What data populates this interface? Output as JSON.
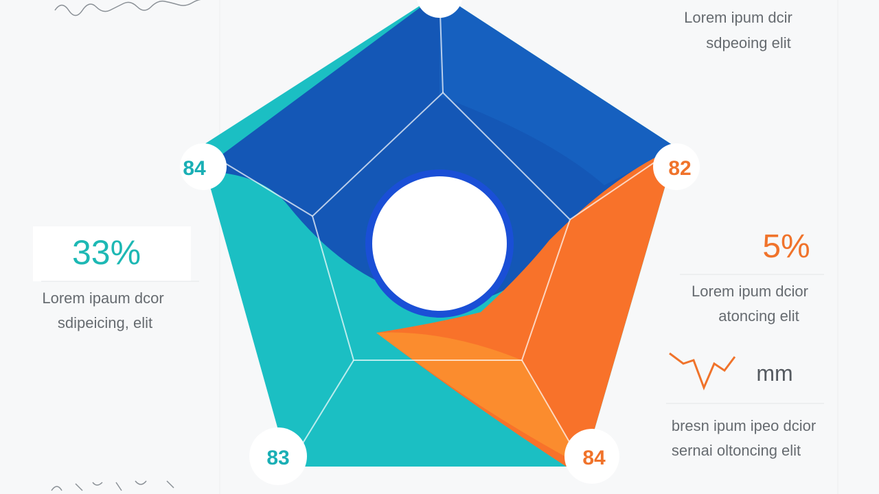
{
  "nodes": [
    "84",
    "82",
    "83",
    "84"
  ],
  "left_panel": {
    "stat": "33%",
    "lines": [
      "Lorem ipaum dcor",
      "sdipeicing, elit"
    ]
  },
  "right_panel": {
    "stat": "5%",
    "lines": [
      "Lorem ipum dcior",
      "atoncing elit"
    ]
  },
  "top_right": {
    "lines": [
      "Lorem ipum dcir",
      "sdpeoing elit"
    ]
  },
  "bottom_right": {
    "icon_label": "mm",
    "lines": [
      "bresn ipum ipeo dcior",
      "sernai oltoncing elit"
    ]
  }
}
